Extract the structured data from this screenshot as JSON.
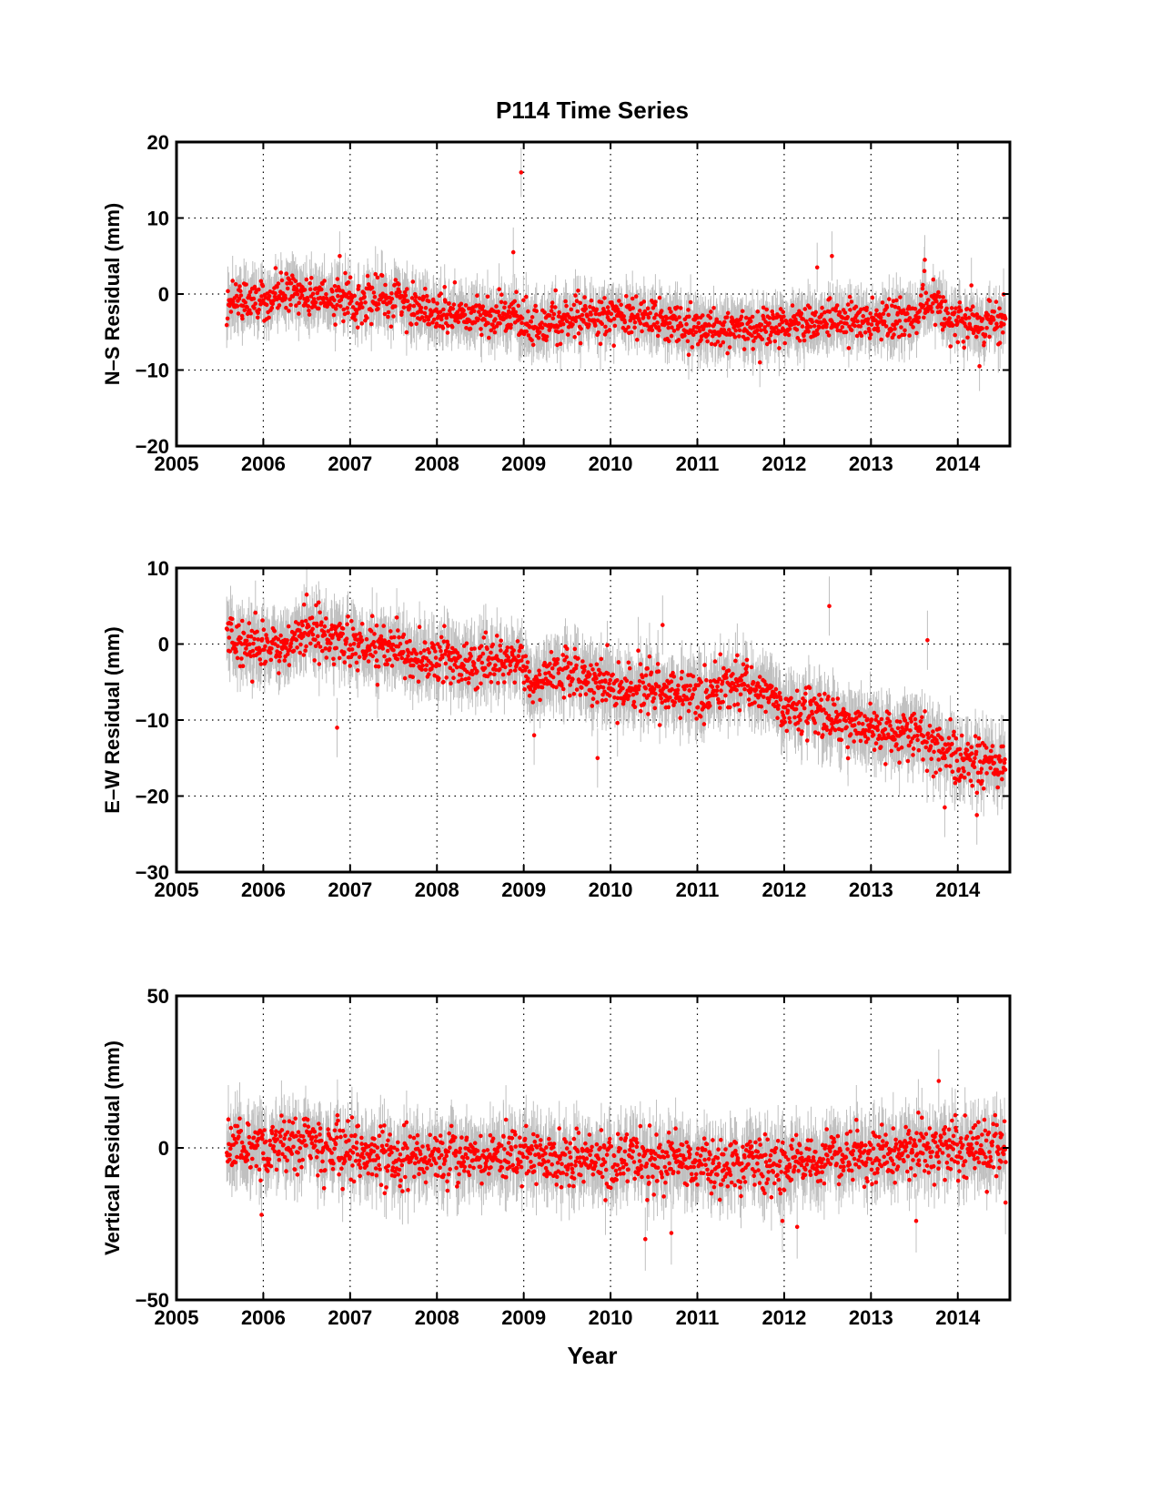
{
  "title": "P114 Time Series",
  "xlabel": "Year",
  "colors": {
    "points": "#ff0000",
    "errorbars": "#c0c0c0",
    "axes": "#000000",
    "grid": "#000000"
  },
  "chart_data": [
    {
      "type": "scatter",
      "ylabel": "N–S Residual (mm)",
      "xlim": [
        2005,
        2014.6
      ],
      "ylim": [
        -20,
        20
      ],
      "xticks": [
        2005,
        2006,
        2007,
        2008,
        2009,
        2010,
        2011,
        2012,
        2013,
        2014
      ],
      "xtick_labels": [
        "2005",
        "2006",
        "2007",
        "2008",
        "2009",
        "2010",
        "2011",
        "2012",
        "2013",
        "2014"
      ],
      "yticks": [
        -20,
        -10,
        0,
        10,
        20
      ],
      "ytick_labels": [
        "−20",
        "−10",
        "0",
        "10",
        "20"
      ],
      "grid": true,
      "error_bars": true,
      "trend_x": [
        2005.58,
        2006.0,
        2006.5,
        2007.0,
        2007.5,
        2007.8,
        2008.2,
        2008.7,
        2008.93,
        2008.97,
        2009.05,
        2009.5,
        2010.0,
        2010.5,
        2011.0,
        2011.5,
        2012.0,
        2012.5,
        2013.0,
        2013.5,
        2013.7,
        2013.9,
        2014.3,
        2014.55
      ],
      "trend_y": [
        -0.5,
        -0.5,
        0.0,
        -1.0,
        -0.5,
        -1.5,
        -3.0,
        -3.0,
        -2.0,
        -4.5,
        -4.5,
        -3.0,
        -3.0,
        -3.0,
        -4.5,
        -4.5,
        -4.0,
        -3.5,
        -3.5,
        -3.5,
        -1.0,
        -3.5,
        -4.0,
        -3.5
      ],
      "scatter_sd": 1.3,
      "errorbar_halfwidth": 2.5,
      "outliers": [
        {
          "x": 2008.97,
          "y": 16
        },
        {
          "x": 2006.88,
          "y": 5
        },
        {
          "x": 2012.55,
          "y": 5
        },
        {
          "x": 2013.62,
          "y": 4.5
        },
        {
          "x": 2012.38,
          "y": 3.5
        },
        {
          "x": 2008.88,
          "y": 5.5
        },
        {
          "x": 2014.25,
          "y": -9.5
        },
        {
          "x": 2010.9,
          "y": -8
        },
        {
          "x": 2011.72,
          "y": -9
        }
      ]
    },
    {
      "type": "scatter",
      "ylabel": "E–W Residual (mm)",
      "xlim": [
        2005,
        2014.6
      ],
      "ylim": [
        -30,
        10
      ],
      "xticks": [
        2005,
        2006,
        2007,
        2008,
        2009,
        2010,
        2011,
        2012,
        2013,
        2014
      ],
      "xtick_labels": [
        "2005",
        "2006",
        "2007",
        "2008",
        "2009",
        "2010",
        "2011",
        "2012",
        "2013",
        "2014"
      ],
      "yticks": [
        -30,
        -20,
        -10,
        0,
        10
      ],
      "ytick_labels": [
        "−30",
        "−20",
        "−10",
        "0",
        "10"
      ],
      "grid": true,
      "error_bars": true,
      "trend_x": [
        2005.58,
        2005.8,
        2006.2,
        2006.5,
        2007.0,
        2007.5,
        2008.0,
        2008.5,
        2008.9,
        2008.97,
        2009.05,
        2009.5,
        2010.0,
        2010.5,
        2011.0,
        2011.5,
        2012.0,
        2012.5,
        2013.0,
        2013.5,
        2014.0,
        2014.55
      ],
      "trend_y": [
        1.5,
        0.0,
        -0.5,
        1.5,
        0.0,
        -1.0,
        -2.0,
        -2.5,
        -3.0,
        -1.0,
        -5.0,
        -3.5,
        -5.5,
        -6.0,
        -7.0,
        -5.0,
        -8.0,
        -9.5,
        -11.5,
        -12.0,
        -15.0,
        -16.0
      ],
      "scatter_sd": 1.6,
      "errorbar_halfwidth": 3.0,
      "outliers": [
        {
          "x": 2012.52,
          "y": 5
        },
        {
          "x": 2010.6,
          "y": 2.5
        },
        {
          "x": 2006.85,
          "y": -11
        },
        {
          "x": 2009.85,
          "y": -15
        },
        {
          "x": 2013.85,
          "y": -21.5
        },
        {
          "x": 2014.22,
          "y": -22.5
        },
        {
          "x": 2013.65,
          "y": 0.5
        },
        {
          "x": 2006.5,
          "y": 6.5
        },
        {
          "x": 2009.12,
          "y": -12
        }
      ]
    },
    {
      "type": "scatter",
      "ylabel": "Vertical Residual (mm)",
      "xlim": [
        2005,
        2014.6
      ],
      "ylim": [
        -50,
        50
      ],
      "xticks": [
        2005,
        2006,
        2007,
        2008,
        2009,
        2010,
        2011,
        2012,
        2013,
        2014
      ],
      "xtick_labels": [
        "2005",
        "2006",
        "2007",
        "2008",
        "2009",
        "2010",
        "2011",
        "2012",
        "2013",
        "2014"
      ],
      "yticks": [
        -50,
        0,
        50
      ],
      "ytick_labels": [
        "−50",
        "0",
        "50"
      ],
      "grid": true,
      "error_bars": true,
      "trend_x": [
        2005.58,
        2006.0,
        2006.5,
        2007.0,
        2007.5,
        2008.0,
        2008.5,
        2009.0,
        2009.5,
        2010.0,
        2010.5,
        2011.0,
        2011.5,
        2012.0,
        2012.5,
        2013.0,
        2013.5,
        2014.0,
        2014.55
      ],
      "trend_y": [
        0,
        0,
        1,
        0,
        -3,
        -3,
        -2,
        -3,
        -4,
        -4,
        -4,
        -5,
        -5,
        -5,
        -3,
        -3,
        -1,
        0,
        0
      ],
      "scatter_sd": 4.5,
      "errorbar_halfwidth": 8,
      "outliers": [
        {
          "x": 2010.4,
          "y": -30
        },
        {
          "x": 2010.7,
          "y": -28
        },
        {
          "x": 2012.15,
          "y": -26
        },
        {
          "x": 2005.98,
          "y": -22
        },
        {
          "x": 2013.78,
          "y": 22
        },
        {
          "x": 2013.52,
          "y": -24
        },
        {
          "x": 2014.55,
          "y": -18
        },
        {
          "x": 2011.98,
          "y": -24
        }
      ]
    }
  ]
}
